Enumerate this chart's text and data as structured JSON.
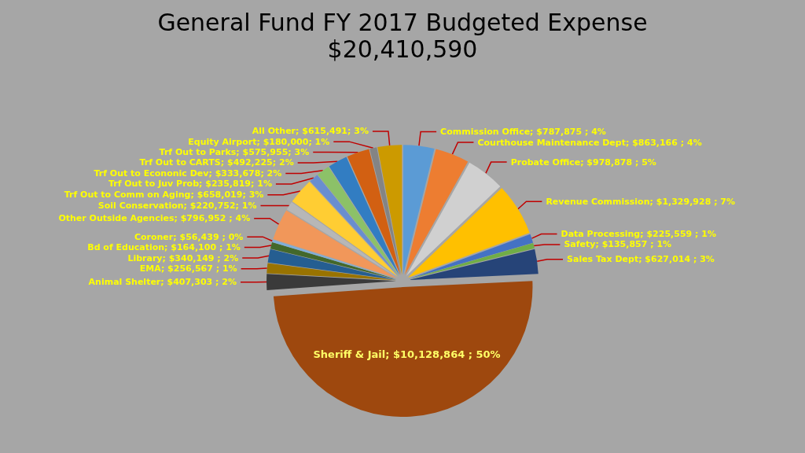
{
  "chart_data": {
    "type": "pie",
    "title": "General Fund FY 2017 Budgeted Expense",
    "subtitle": "$20,410,590",
    "categories": [
      "Commission Office",
      "Courthouse Maintenance Dept",
      "Probate Office",
      "Revenue Commission",
      "Data Processing",
      "Safety",
      "Sales Tax Dept",
      "Sheriff & Jail",
      "Animal Shelter",
      "EMA",
      "Library",
      "Bd of Education",
      "Coroner",
      "Other Outside Agencies",
      "Soil Conservation",
      "Trf Out to Comm on Aging",
      "Trf Out to Juv Prob",
      "Trf Out to Econonic Dev",
      "Trf Out to CARTS",
      "Trf Out to Parks",
      "Equity Airport",
      "All Other"
    ],
    "values": [
      787875,
      863166,
      978878,
      1329928,
      225559,
      135857,
      627014,
      10128864,
      407303,
      256567,
      340149,
      164100,
      56439,
      796952,
      220752,
      658019,
      235819,
      333678,
      492225,
      575955,
      180000,
      615491
    ],
    "value_labels": [
      "; $787,875 ; 4%",
      "; $863,166 ; 4%",
      "; $978,878 ; 5%",
      "; $1,329,928 ; 7%",
      "; $225,559 ; 1%",
      "; $135,857 ; 1%",
      "; $627,014 ; 3%",
      "; $10,128,864 ; 50%",
      "; $407,303 ; 2%",
      "; $256,567 ; 1%",
      "; $340,149 ; 2%",
      "; $164,100 ; 1%",
      "; $56,439 ; 0%",
      "; $796,952 ; 4%",
      "; $220,752; 1%",
      "; $658,019; 3%",
      "; $235,819; 1%",
      "; $333,678; 2%",
      "; $492,225; 2%",
      "; $575,955; 3%",
      "; $180,000; 1%",
      "; $615,491; 3%"
    ],
    "colors": [
      "#5b9bd5",
      "#ed7d31",
      "#d0d0d0",
      "#ffc000",
      "#4472c4",
      "#70ad47",
      "#264478",
      "#9e480e",
      "#3a3a3a",
      "#997300",
      "#255e91",
      "#43682b",
      "#7cafdd",
      "#f1975a",
      "#b7b7b7",
      "#ffcd33",
      "#698ed0",
      "#8cc168",
      "#327dc2",
      "#d26012",
      "#848484",
      "#cc9a00"
    ],
    "legend": false
  }
}
